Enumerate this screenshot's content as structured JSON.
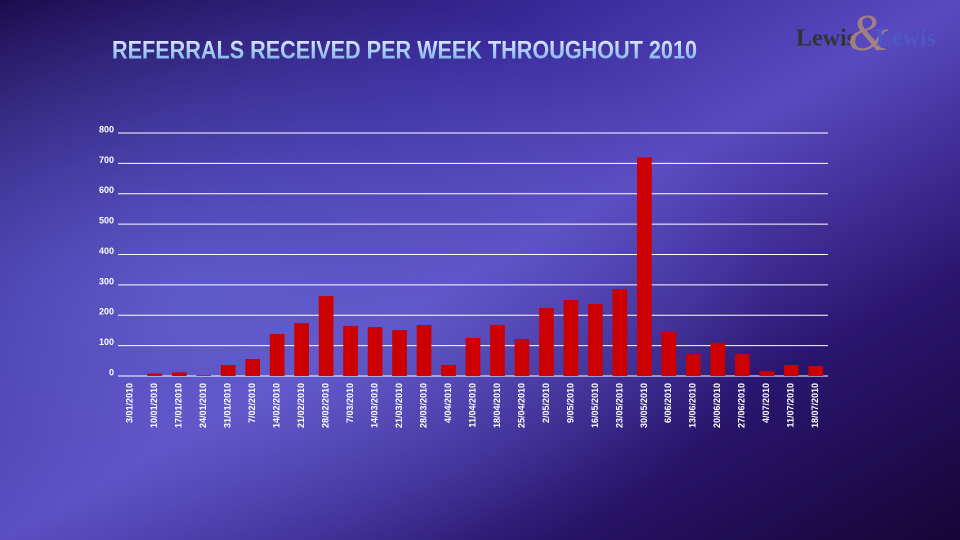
{
  "chart_data": {
    "type": "bar",
    "title": "REFERRALS RECEIVED PER WEEK THROUGHOUT 2010",
    "categories": [
      "3/01/2010",
      "10/01/2010",
      "17/01/2010",
      "24/01/2010",
      "31/01/2010",
      "7/02/2010",
      "14/02/2010",
      "21/02/2010",
      "28/02/2010",
      "7/03/2010",
      "14/03/2010",
      "21/03/2010",
      "28/03/2010",
      "4/04/2010",
      "11/04/2010",
      "18/04/2010",
      "25/04/2010",
      "2/05/2010",
      "9/05/2010",
      "16/05/2010",
      "23/05/2010",
      "30/05/2010",
      "6/06/2010",
      "13/06/2010",
      "20/06/2010",
      "27/06/2010",
      "4/07/2010",
      "11/07/2010",
      "18/07/2010"
    ],
    "values": [
      0,
      8,
      12,
      2,
      36,
      56,
      138,
      174,
      263,
      165,
      161,
      151,
      168,
      36,
      125,
      168,
      122,
      224,
      250,
      237,
      286,
      720,
      145,
      72,
      109,
      72,
      16,
      36,
      33
    ],
    "color": "#cc0000",
    "ylim": [
      0,
      800
    ],
    "yticks": [
      0,
      100,
      200,
      300,
      400,
      500,
      600,
      700,
      800
    ],
    "grid": true
  },
  "logo": {
    "left": "Lewis",
    "amp": "&",
    "right": "Lewis"
  }
}
